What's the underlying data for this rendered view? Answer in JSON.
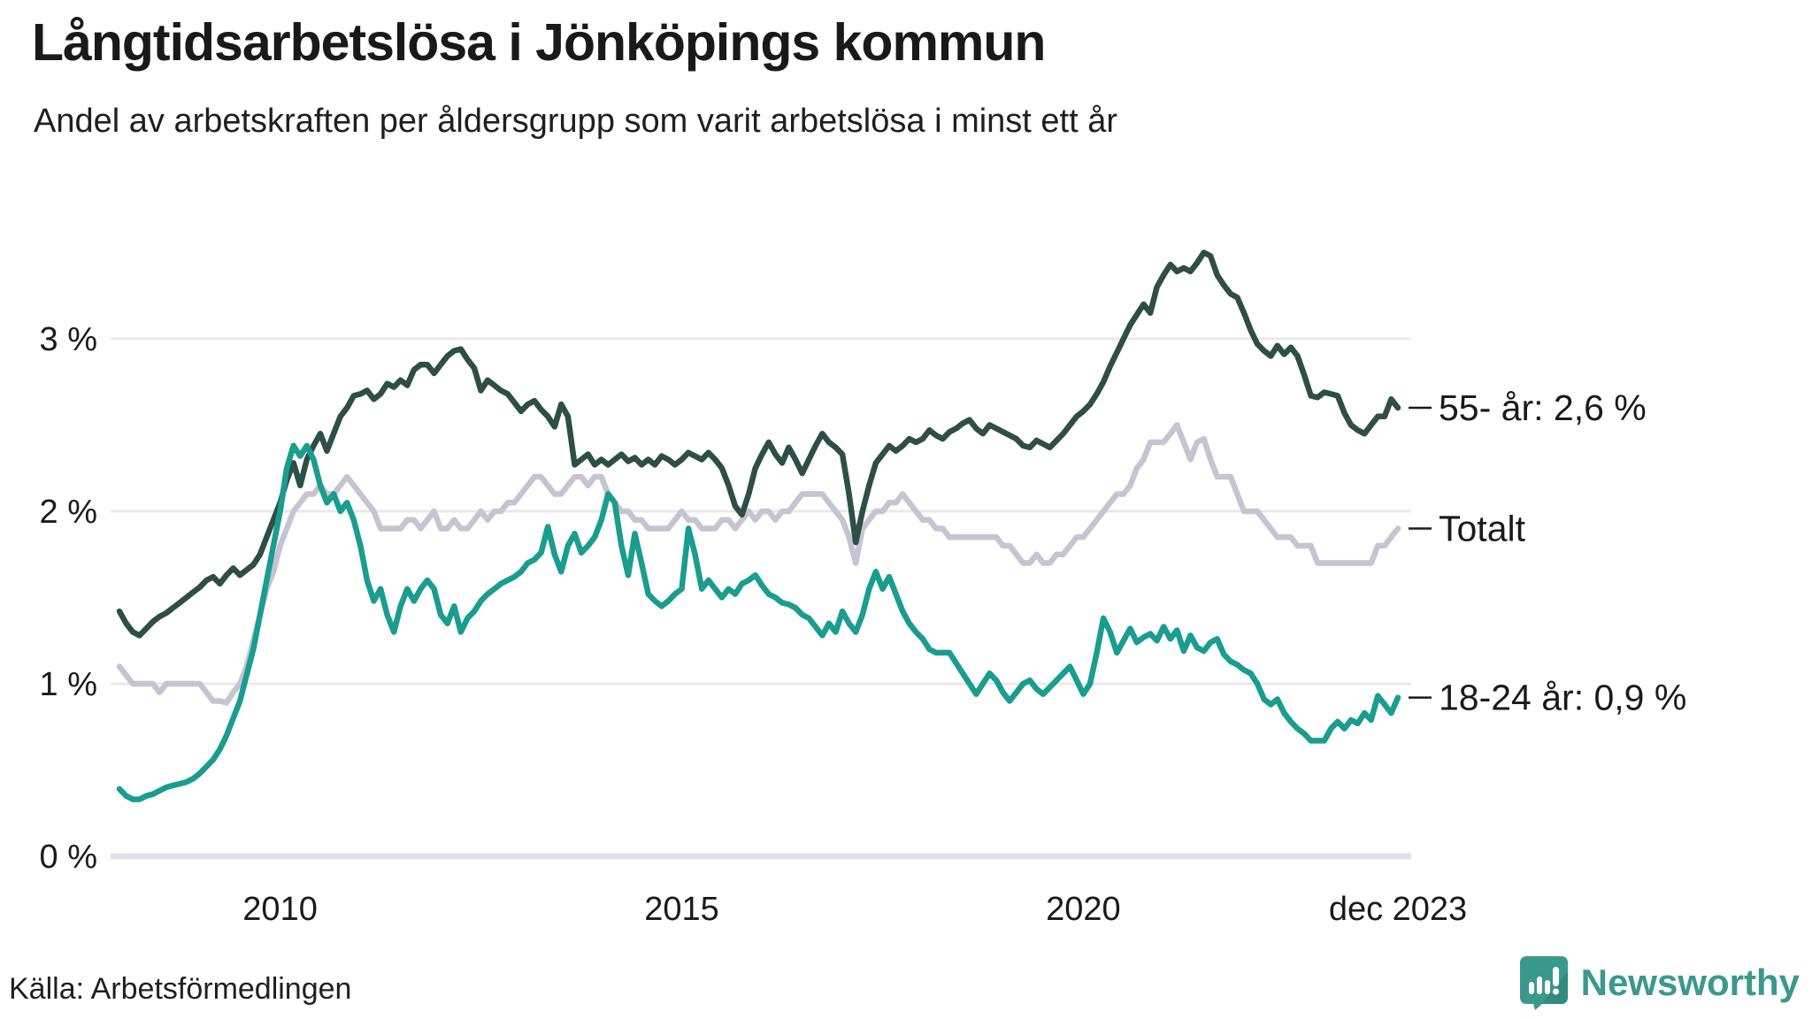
{
  "header": {
    "title": "Långtidsarbetslösa i Jönköpings kommun",
    "subtitle": "Andel av arbetskraften per åldersgrupp som varit arbetslösa i minst ett år"
  },
  "footer": {
    "source": "Källa: Arbetsförmedlingen",
    "brand": "Newsworthy"
  },
  "colors": {
    "series_55": "#2d4f45",
    "series_total": "#c7c4d2",
    "series_1824": "#199d8f",
    "grid": "#e9e8ee",
    "zero_line": "#e2e1e8",
    "text": "#1a1a1a",
    "brand_teal": "#3a998c"
  },
  "chart_data": {
    "type": "line",
    "title": "Långtidsarbetslösa i Jönköpings kommun",
    "subtitle": "Andel av arbetskraften per åldersgrupp som varit arbetslösa i minst ett år",
    "unit": "%",
    "frequency": "monthly",
    "start_year": 2008,
    "end_label_x": "dec 2023",
    "ylim": [
      0,
      3.6
    ],
    "grid": "horizontal",
    "legend_position": "right-end-labels",
    "yticks": [
      {
        "value": 0,
        "label": "0 %"
      },
      {
        "value": 1,
        "label": "1 %"
      },
      {
        "value": 2,
        "label": "2 %"
      },
      {
        "value": 3,
        "label": "3 %"
      }
    ],
    "xticks": [
      {
        "month_index": 24,
        "label": "2010"
      },
      {
        "month_index": 84,
        "label": "2015"
      },
      {
        "month_index": 144,
        "label": "2020"
      },
      {
        "month_index": 191,
        "label": "dec 2023"
      }
    ],
    "series": [
      {
        "name": "Totalt",
        "end_label": "Totalt",
        "end_value": 1.9,
        "color": "#c7c4d2",
        "values": [
          1.1,
          1.05,
          1.0,
          1.0,
          1.0,
          1.0,
          0.95,
          1.0,
          1.0,
          1.0,
          1.0,
          1.0,
          1.0,
          0.95,
          0.9,
          0.9,
          0.89,
          0.95,
          1.0,
          1.1,
          1.25,
          1.4,
          1.55,
          1.65,
          1.8,
          1.9,
          2.0,
          2.05,
          2.1,
          2.1,
          2.15,
          2.1,
          2.1,
          2.15,
          2.2,
          2.15,
          2.1,
          2.05,
          2.0,
          1.9,
          1.9,
          1.9,
          1.9,
          1.95,
          1.95,
          1.9,
          1.95,
          2.0,
          1.9,
          1.9,
          1.95,
          1.9,
          1.9,
          1.95,
          2.0,
          1.95,
          2.0,
          2.0,
          2.05,
          2.05,
          2.1,
          2.15,
          2.2,
          2.2,
          2.15,
          2.1,
          2.1,
          2.15,
          2.2,
          2.2,
          2.15,
          2.2,
          2.2,
          2.1,
          2.05,
          2.0,
          2.0,
          1.95,
          1.95,
          1.9,
          1.9,
          1.9,
          1.9,
          1.95,
          2.0,
          1.95,
          1.95,
          1.9,
          1.9,
          1.9,
          1.95,
          1.95,
          1.9,
          1.95,
          2.0,
          1.95,
          2.0,
          2.0,
          1.95,
          2.0,
          2.0,
          2.05,
          2.1,
          2.1,
          2.1,
          2.1,
          2.05,
          2.0,
          1.95,
          1.85,
          1.7,
          1.9,
          1.95,
          2.0,
          2.0,
          2.05,
          2.05,
          2.1,
          2.05,
          2.0,
          1.95,
          1.95,
          1.9,
          1.9,
          1.85,
          1.85,
          1.85,
          1.85,
          1.85,
          1.85,
          1.85,
          1.85,
          1.8,
          1.8,
          1.75,
          1.7,
          1.7,
          1.75,
          1.7,
          1.7,
          1.75,
          1.75,
          1.8,
          1.85,
          1.85,
          1.9,
          1.95,
          2.0,
          2.05,
          2.1,
          2.1,
          2.15,
          2.25,
          2.3,
          2.4,
          2.4,
          2.4,
          2.45,
          2.5,
          2.4,
          2.3,
          2.4,
          2.42,
          2.3,
          2.2,
          2.2,
          2.2,
          2.1,
          2.0,
          2.0,
          2.0,
          1.95,
          1.9,
          1.85,
          1.85,
          1.85,
          1.8,
          1.8,
          1.8,
          1.7,
          1.7,
          1.7,
          1.7,
          1.7,
          1.7,
          1.7,
          1.7,
          1.7,
          1.8,
          1.8,
          1.85,
          1.9
        ]
      },
      {
        "name": "55- år",
        "end_label": "55- år: 2,6 %",
        "end_value": 2.6,
        "color": "#2d4f45",
        "values": [
          1.42,
          1.35,
          1.3,
          1.28,
          1.32,
          1.36,
          1.39,
          1.41,
          1.44,
          1.47,
          1.5,
          1.53,
          1.56,
          1.6,
          1.62,
          1.58,
          1.63,
          1.67,
          1.63,
          1.66,
          1.69,
          1.75,
          1.85,
          1.95,
          2.05,
          2.18,
          2.28,
          2.15,
          2.3,
          2.38,
          2.45,
          2.35,
          2.45,
          2.55,
          2.6,
          2.67,
          2.68,
          2.7,
          2.65,
          2.68,
          2.74,
          2.72,
          2.76,
          2.73,
          2.82,
          2.85,
          2.85,
          2.8,
          2.85,
          2.9,
          2.93,
          2.94,
          2.88,
          2.83,
          2.7,
          2.76,
          2.73,
          2.7,
          2.68,
          2.63,
          2.58,
          2.62,
          2.64,
          2.59,
          2.55,
          2.49,
          2.62,
          2.55,
          2.27,
          2.3,
          2.33,
          2.27,
          2.3,
          2.27,
          2.3,
          2.33,
          2.29,
          2.31,
          2.27,
          2.3,
          2.27,
          2.32,
          2.3,
          2.27,
          2.3,
          2.34,
          2.32,
          2.3,
          2.34,
          2.3,
          2.25,
          2.15,
          2.03,
          1.98,
          2.1,
          2.25,
          2.33,
          2.4,
          2.33,
          2.28,
          2.37,
          2.3,
          2.22,
          2.3,
          2.38,
          2.45,
          2.4,
          2.37,
          2.33,
          2.1,
          1.82,
          2.0,
          2.15,
          2.28,
          2.33,
          2.38,
          2.35,
          2.38,
          2.42,
          2.4,
          2.42,
          2.47,
          2.44,
          2.42,
          2.46,
          2.48,
          2.51,
          2.53,
          2.48,
          2.45,
          2.5,
          2.48,
          2.46,
          2.44,
          2.42,
          2.38,
          2.37,
          2.41,
          2.39,
          2.37,
          2.41,
          2.45,
          2.5,
          2.55,
          2.58,
          2.62,
          2.68,
          2.75,
          2.84,
          2.92,
          3.0,
          3.08,
          3.14,
          3.2,
          3.15,
          3.3,
          3.37,
          3.43,
          3.39,
          3.41,
          3.39,
          3.44,
          3.5,
          3.48,
          3.37,
          3.31,
          3.26,
          3.24,
          3.15,
          3.05,
          2.97,
          2.93,
          2.9,
          2.96,
          2.91,
          2.95,
          2.9,
          2.79,
          2.67,
          2.66,
          2.69,
          2.68,
          2.67,
          2.57,
          2.5,
          2.47,
          2.45,
          2.5,
          2.55,
          2.55,
          2.65,
          2.6
        ]
      },
      {
        "name": "18-24 år",
        "end_label": "18-24 år: 0,9 %",
        "end_value": 0.9,
        "color": "#199d8f",
        "values": [
          0.39,
          0.35,
          0.33,
          0.33,
          0.35,
          0.36,
          0.38,
          0.4,
          0.41,
          0.42,
          0.43,
          0.45,
          0.48,
          0.52,
          0.56,
          0.62,
          0.7,
          0.8,
          0.9,
          1.05,
          1.2,
          1.4,
          1.6,
          1.8,
          2.0,
          2.25,
          2.38,
          2.32,
          2.38,
          2.3,
          2.15,
          2.05,
          2.1,
          2.0,
          2.05,
          1.95,
          1.8,
          1.6,
          1.48,
          1.55,
          1.4,
          1.3,
          1.45,
          1.55,
          1.48,
          1.55,
          1.6,
          1.55,
          1.4,
          1.35,
          1.45,
          1.3,
          1.38,
          1.42,
          1.48,
          1.52,
          1.55,
          1.58,
          1.6,
          1.62,
          1.65,
          1.7,
          1.72,
          1.76,
          1.91,
          1.75,
          1.65,
          1.8,
          1.87,
          1.76,
          1.8,
          1.85,
          1.95,
          2.1,
          2.05,
          1.8,
          1.63,
          1.87,
          1.7,
          1.52,
          1.48,
          1.45,
          1.48,
          1.52,
          1.55,
          1.9,
          1.75,
          1.55,
          1.6,
          1.55,
          1.5,
          1.55,
          1.52,
          1.58,
          1.6,
          1.63,
          1.57,
          1.52,
          1.5,
          1.47,
          1.46,
          1.44,
          1.4,
          1.38,
          1.33,
          1.28,
          1.35,
          1.3,
          1.42,
          1.35,
          1.3,
          1.4,
          1.55,
          1.65,
          1.55,
          1.62,
          1.52,
          1.42,
          1.35,
          1.3,
          1.26,
          1.2,
          1.18,
          1.18,
          1.18,
          1.12,
          1.06,
          1.0,
          0.94,
          1.0,
          1.06,
          1.02,
          0.95,
          0.9,
          0.95,
          1.0,
          1.02,
          0.97,
          0.94,
          0.98,
          1.02,
          1.06,
          1.1,
          1.02,
          0.94,
          1.0,
          1.18,
          1.38,
          1.3,
          1.18,
          1.25,
          1.32,
          1.24,
          1.27,
          1.29,
          1.25,
          1.33,
          1.26,
          1.31,
          1.19,
          1.28,
          1.21,
          1.19,
          1.24,
          1.26,
          1.17,
          1.13,
          1.11,
          1.08,
          1.06,
          1.0,
          0.91,
          0.88,
          0.91,
          0.83,
          0.78,
          0.74,
          0.71,
          0.67,
          0.67,
          0.67,
          0.74,
          0.78,
          0.74,
          0.79,
          0.77,
          0.83,
          0.79,
          0.93,
          0.88,
          0.83,
          0.92
        ]
      }
    ]
  }
}
